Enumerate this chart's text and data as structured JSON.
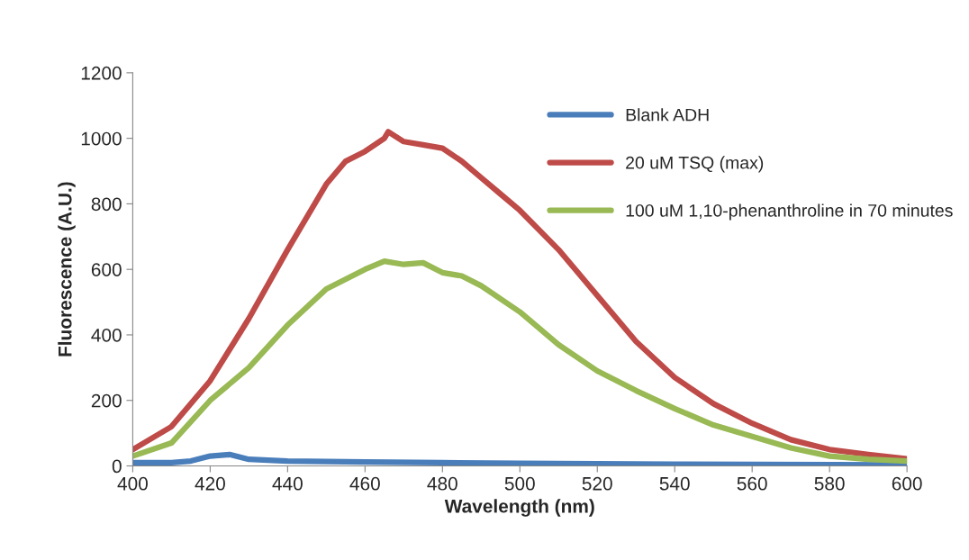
{
  "chart_data": {
    "type": "line",
    "xlabel": "Wavelength (nm)",
    "ylabel": "Fluorescence (A.U.)",
    "xlim": [
      400,
      600
    ],
    "xticks": [
      400,
      420,
      440,
      460,
      480,
      500,
      520,
      540,
      560,
      580,
      600
    ],
    "ylim": [
      0,
      1200
    ],
    "yticks": [
      0,
      200,
      400,
      600,
      800,
      1000,
      1200
    ],
    "grid": false,
    "legend": "top right",
    "marker": "none",
    "line_style": "solid",
    "series": [
      {
        "name": "Blank ADH",
        "color": "#4a7ebb",
        "x": [
          400,
          410,
          415,
          420,
          425,
          430,
          440,
          460,
          480,
          500,
          540,
          600
        ],
        "values": [
          10,
          10,
          15,
          30,
          35,
          20,
          15,
          12,
          10,
          8,
          5,
          3
        ]
      },
      {
        "name": "20 uM TSQ (max)",
        "color": "#be4b48",
        "x": [
          400,
          410,
          420,
          430,
          440,
          450,
          455,
          460,
          465,
          466,
          470,
          475,
          480,
          485,
          490,
          495,
          500,
          510,
          520,
          530,
          540,
          550,
          560,
          570,
          580,
          590,
          600
        ],
        "values": [
          50,
          120,
          260,
          450,
          660,
          860,
          930,
          960,
          1000,
          1020,
          990,
          980,
          970,
          930,
          880,
          830,
          780,
          660,
          520,
          380,
          270,
          190,
          130,
          80,
          50,
          35,
          22
        ]
      },
      {
        "name": "100 uM 1,10-phenanthroline in 70 minutes",
        "color": "#98b954",
        "x": [
          400,
          410,
          420,
          430,
          440,
          450,
          460,
          465,
          470,
          475,
          480,
          485,
          490,
          500,
          510,
          520,
          530,
          540,
          550,
          560,
          570,
          580,
          590,
          600
        ],
        "values": [
          30,
          70,
          200,
          300,
          430,
          540,
          600,
          625,
          615,
          620,
          590,
          580,
          550,
          470,
          370,
          290,
          230,
          175,
          125,
          90,
          55,
          30,
          20,
          15
        ]
      }
    ]
  }
}
